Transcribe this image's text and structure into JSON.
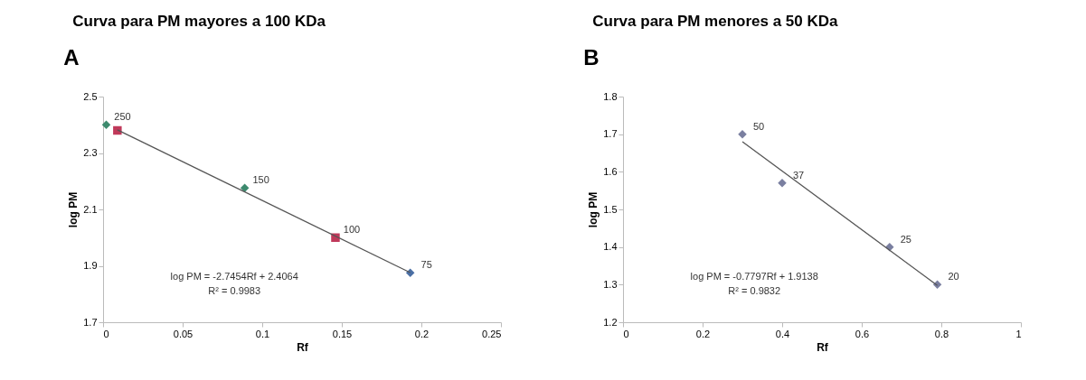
{
  "chart_data": [
    {
      "type": "scatter",
      "title": "Curva para PM mayores a 100 KDa",
      "xlabel": "Rf",
      "ylabel": "log PM",
      "annotations": [
        "A",
        "log PM = -2.7454Rf + 2.4064",
        "R² = 0.9983",
        {
          "text": "250",
          "x": 0.002,
          "y": 2.4
        },
        {
          "text": "150",
          "x": 0.089,
          "y": 2.176
        },
        {
          "text": "100",
          "x": 0.146,
          "y": 2.0
        },
        {
          "text": "75",
          "x": 0.193,
          "y": 1.875
        }
      ],
      "xlim": [
        0,
        0.25
      ],
      "xticks": [
        0,
        0.05,
        0.1,
        0.15,
        0.2,
        0.25
      ],
      "ylim": [
        1.7,
        2.5
      ],
      "yticks": [
        1.7,
        1.9,
        2.1,
        2.3,
        2.5
      ],
      "grid": false,
      "series": [
        {
          "marker": "diamond",
          "x": [
            0.002,
            0.089,
            0.193
          ],
          "values": [
            2.4,
            2.176,
            1.875
          ],
          "colors": [
            "#3d8a6e",
            "#3d8a6e",
            "#4a6fa5"
          ]
        },
        {
          "marker": "square",
          "x": [
            0.009,
            0.146
          ],
          "values": [
            2.38,
            2.0
          ],
          "colors": [
            "#c0395a",
            "#c0395a"
          ]
        },
        {
          "type": "line",
          "line_style": "solid",
          "color": "#555555",
          "x": [
            0.009,
            0.193
          ],
          "values": [
            2.382,
            1.876
          ]
        }
      ]
    },
    {
      "type": "scatter",
      "title": "Curva para PM menores a 50 KDa",
      "xlabel": "Rf",
      "ylabel": "log PM",
      "annotations": [
        "B",
        "log PM = -0.7797Rf + 1.9138",
        "R² = 0.9832",
        {
          "text": "50",
          "x": 0.3,
          "y": 1.7
        },
        {
          "text": "37",
          "x": 0.4,
          "y": 1.57
        },
        {
          "text": "25",
          "x": 0.67,
          "y": 1.4
        },
        {
          "text": "20",
          "x": 0.79,
          "y": 1.3
        }
      ],
      "xlim": [
        0,
        1
      ],
      "xticks": [
        0,
        0.2,
        0.4,
        0.6,
        0.8,
        1
      ],
      "ylim": [
        1.2,
        1.8
      ],
      "yticks": [
        1.2,
        1.3,
        1.4,
        1.5,
        1.6,
        1.7,
        1.8
      ],
      "grid": false,
      "series": [
        {
          "marker": "diamond",
          "x": [
            0.3,
            0.4,
            0.67,
            0.79
          ],
          "values": [
            1.7,
            1.57,
            1.4,
            1.3
          ],
          "colors": [
            "#7a7fa0",
            "#7a7fa0",
            "#7a7fa0",
            "#7a7fa0"
          ]
        },
        {
          "type": "line",
          "line_style": "solid",
          "color": "#555555",
          "x": [
            0.3,
            0.79
          ],
          "values": [
            1.68,
            1.298
          ]
        }
      ]
    }
  ]
}
